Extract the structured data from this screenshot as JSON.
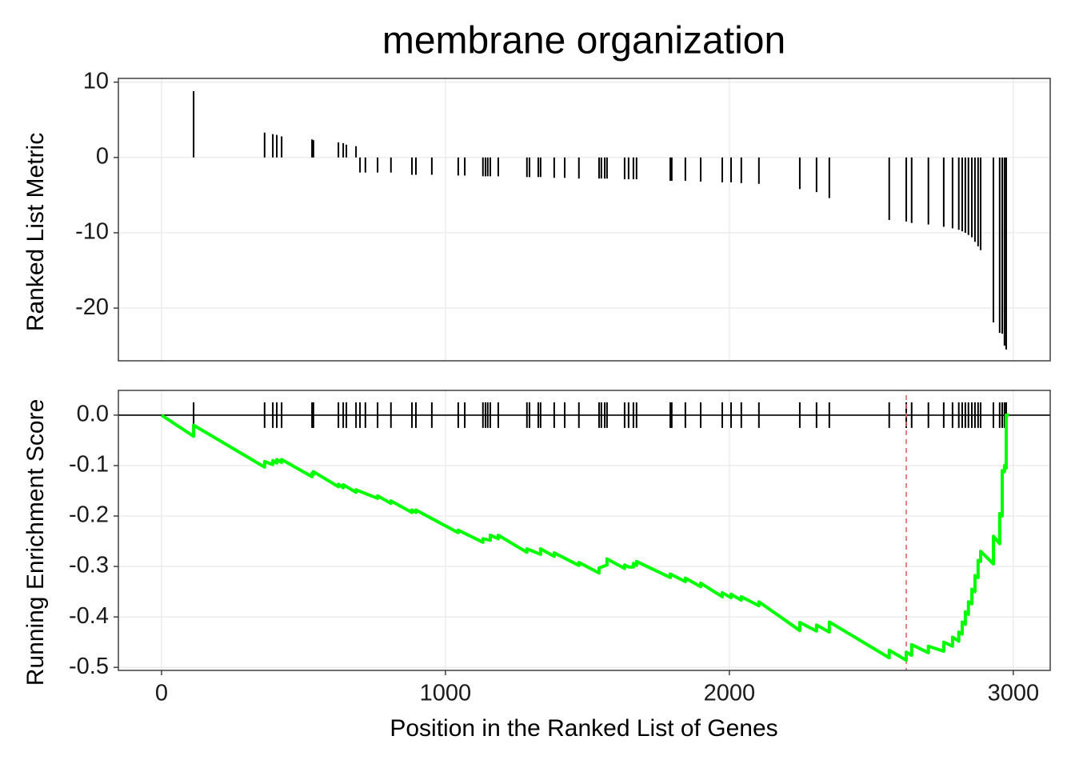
{
  "chart_data": [
    {
      "type": "bar",
      "title": "membrane organization",
      "ylabel": "Ranked List Metric",
      "x": [
        113,
        363,
        392,
        406,
        423,
        530,
        535,
        623,
        640,
        651,
        685,
        699,
        718,
        761,
        808,
        882,
        896,
        952,
        1045,
        1068,
        1132,
        1141,
        1149,
        1158,
        1186,
        1287,
        1296,
        1327,
        1335,
        1383,
        1420,
        1470,
        1541,
        1549,
        1561,
        1569,
        1631,
        1645,
        1662,
        1673,
        1792,
        1797,
        1845,
        1899,
        1975,
        2006,
        2042,
        2104,
        2248,
        2307,
        2352,
        2563,
        2623,
        2642,
        2701,
        2755,
        2786,
        2808,
        2820,
        2831,
        2842,
        2854,
        2865,
        2876,
        2885,
        2930,
        2952,
        2961,
        2969,
        2975
      ],
      "values": [
        8.8,
        3.3,
        3.1,
        3.0,
        2.8,
        2.4,
        2.3,
        2.0,
        1.9,
        1.7,
        1.5,
        -2,
        -2,
        -2,
        -2,
        -2.3,
        -2.3,
        -2.3,
        -2.4,
        -2.4,
        -2.5,
        -2.5,
        -2.5,
        -2.5,
        -2.5,
        -2.6,
        -2.6,
        -2.6,
        -2.6,
        -2.7,
        -2.7,
        -2.8,
        -2.8,
        -2.8,
        -2.8,
        -2.8,
        -2.9,
        -2.9,
        -2.9,
        -2.9,
        -3.1,
        -3.1,
        -3.1,
        -3.2,
        -3.3,
        -3.3,
        -3.4,
        -3.5,
        -4.2,
        -4.6,
        -5.4,
        -8.3,
        -8.5,
        -8.7,
        -8.9,
        -9.2,
        -9.4,
        -9.6,
        -9.8,
        -10.0,
        -10.3,
        -10.6,
        -11.2,
        -11.8,
        -12.3,
        -21.9,
        -23.3,
        -23.4,
        -25.0,
        -25.5
      ],
      "color": "#000000",
      "xlim": [
        -152,
        3130
      ],
      "xticks": [
        0,
        1000,
        2000,
        3000
      ],
      "ylim": [
        -27,
        10.5
      ],
      "yticks": [
        10,
        0,
        -10,
        -20
      ],
      "grid": true
    },
    {
      "type": "line",
      "xlabel": "Position in the Ranked List of Genes",
      "ylabel": "Running Enrichment Score",
      "series": [
        {
          "color": "#00ff00",
          "x": [
            0,
            113,
            113,
            363,
            363,
            392,
            392,
            406,
            406,
            423,
            423,
            530,
            530,
            535,
            535,
            623,
            623,
            640,
            640,
            685,
            685,
            761,
            761,
            808,
            808,
            882,
            882,
            896,
            896,
            952,
            1045,
            1045,
            1132,
            1132,
            1158,
            1158,
            1186,
            1186,
            1287,
            1287,
            1335,
            1335,
            1383,
            1383,
            1470,
            1470,
            1541,
            1541,
            1569,
            1569,
            1631,
            1631,
            1645,
            1662,
            1662,
            1673,
            1673,
            1792,
            1792,
            1845,
            1845,
            1899,
            1899,
            1975,
            1975,
            2006,
            2006,
            2042,
            2042,
            2104,
            2104,
            2248,
            2248,
            2307,
            2307,
            2352,
            2352,
            2563,
            2563,
            2623,
            2623,
            2642,
            2642,
            2701,
            2701,
            2755,
            2755,
            2786,
            2786,
            2808,
            2808,
            2820,
            2820,
            2831,
            2831,
            2842,
            2842,
            2854,
            2854,
            2865,
            2865,
            2876,
            2876,
            2885,
            2885,
            2930,
            2930,
            2952,
            2952,
            2961,
            2961,
            2969,
            2969,
            2975,
            2975,
            2985
          ],
          "values": [
            0,
            -0.042,
            -0.02,
            -0.103,
            -0.092,
            -0.098,
            -0.09,
            -0.095,
            -0.088,
            -0.094,
            -0.088,
            -0.122,
            -0.115,
            -0.118,
            -0.112,
            -0.142,
            -0.137,
            -0.144,
            -0.138,
            -0.153,
            -0.148,
            -0.165,
            -0.16,
            -0.175,
            -0.17,
            -0.193,
            -0.188,
            -0.193,
            -0.188,
            -0.205,
            -0.233,
            -0.228,
            -0.252,
            -0.245,
            -0.248,
            -0.238,
            -0.245,
            -0.238,
            -0.272,
            -0.265,
            -0.276,
            -0.265,
            -0.28,
            -0.273,
            -0.298,
            -0.292,
            -0.313,
            -0.303,
            -0.297,
            -0.285,
            -0.304,
            -0.297,
            -0.301,
            -0.301,
            -0.294,
            -0.298,
            -0.29,
            -0.322,
            -0.315,
            -0.33,
            -0.323,
            -0.34,
            -0.333,
            -0.36,
            -0.352,
            -0.362,
            -0.355,
            -0.367,
            -0.36,
            -0.378,
            -0.37,
            -0.427,
            -0.411,
            -0.428,
            -0.416,
            -0.43,
            -0.41,
            -0.481,
            -0.466,
            -0.486,
            -0.47,
            -0.476,
            -0.455,
            -0.471,
            -0.458,
            -0.468,
            -0.45,
            -0.458,
            -0.44,
            -0.448,
            -0.43,
            -0.434,
            -0.41,
            -0.415,
            -0.39,
            -0.395,
            -0.37,
            -0.374,
            -0.345,
            -0.35,
            -0.318,
            -0.322,
            -0.288,
            -0.29,
            -0.27,
            -0.295,
            -0.24,
            -0.255,
            -0.195,
            -0.2,
            -0.11,
            -0.112,
            -0.1,
            -0.105,
            0,
            0
          ]
        }
      ],
      "hline": 0,
      "vline": 2623,
      "vline_color": "#e06666",
      "xlim": [
        -152,
        3130
      ],
      "xticks": [
        0,
        1000,
        2000,
        3000
      ],
      "ylim": [
        -0.506,
        0.049
      ],
      "yticks": [
        {
          "value": 0,
          "label": "0.0"
        },
        -0.1,
        -0.2,
        -0.3,
        -0.4,
        -0.5
      ],
      "grid": true
    }
  ]
}
